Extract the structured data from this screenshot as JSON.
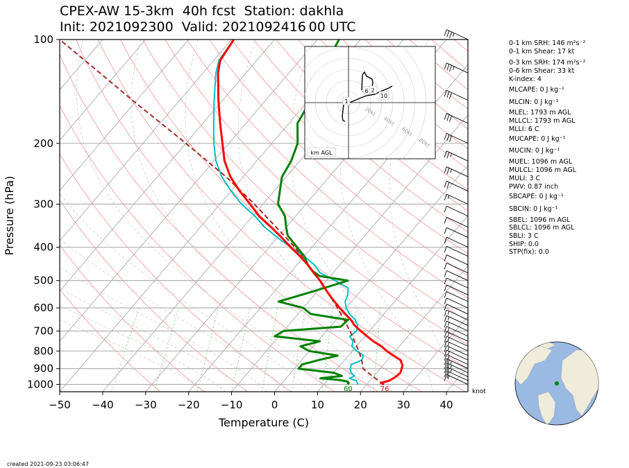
{
  "title_line1": "CPEX-AW 15-3km  40h fcst  Station: dakhla",
  "title_line2": "Init: 2021092300  Valid: 2021092416 00 UTC",
  "created": "created 2021-09-23 03:06:47",
  "wind_unit": "knot",
  "hodograph": {
    "label": "km AGL",
    "ring_labels": [
      "20kt",
      "40kt",
      "60kt",
      "80kt"
    ],
    "markers": [
      "1",
      "6",
      "2",
      "10"
    ]
  },
  "indices": [
    {
      "text": "0-1 km SRH: 146 m²s⁻²"
    },
    {
      "text": "0-1 km Shear: 17 kt"
    },
    {
      "text": "0-3 km SRH: 174 m²s⁻²"
    },
    {
      "text": "0-6 km Shear: 33 kt"
    },
    {
      "text": "K-index: 4"
    },
    {
      "text": "MLCAPE: 0 J kg⁻¹"
    },
    {
      "text": "MLCIN: 0 J kg⁻¹"
    },
    {
      "text": "MLEL: 1793 m AGL"
    },
    {
      "text": "MLLCL: 1793 m AGL"
    },
    {
      "text": "MLLI: 6 C"
    },
    {
      "text": "MUCAPE: 0 J kg⁻¹"
    },
    {
      "text": "MUCIN: 0 J kg⁻¹"
    },
    {
      "text": "MUEL: 1096 m AGL"
    },
    {
      "text": "MULCL: 1096 m AGL"
    },
    {
      "text": "MULI: 3 C"
    },
    {
      "text": "PWV: 0.87 inch"
    },
    {
      "text": "SBCAPE: 0 J kg⁻¹"
    },
    {
      "text": "SBCIN: 0 J kg⁻¹"
    },
    {
      "text": "SBEL: 1096 m AGL"
    },
    {
      "text": "SBLCL: 1096 m AGL"
    },
    {
      "text": "SBLI: 3 C"
    },
    {
      "text": "SHIP: 0.0"
    },
    {
      "text": "STP(fix): 0.0"
    }
  ],
  "chart_data": {
    "type": "line",
    "subtype": "skew-T log-p",
    "xlabel": "Temperature (C)",
    "ylabel": "Pressure (hPa)",
    "xlim": [
      -50,
      45
    ],
    "ylim": [
      1050,
      100
    ],
    "xticks": [
      -50,
      -40,
      -30,
      -20,
      -10,
      0,
      10,
      20,
      30,
      40
    ],
    "yticks": [
      100,
      200,
      300,
      400,
      500,
      600,
      700,
      800,
      900,
      1000
    ],
    "surface_labels": {
      "dewpoint_f": "60",
      "temperature_f": "76"
    },
    "colors": {
      "temperature": "#ff0000",
      "dewpoint": "#008000",
      "wetbulb": "#00bfc4",
      "parcel": "#a52a2a",
      "isotherm": "#aaaaaa",
      "dry_adiabat": "#f4a0a0",
      "mixing_ratio": "#7ccd7c"
    },
    "series": [
      {
        "pressure": [
          1000,
          990,
          975,
          960,
          945,
          925,
          900,
          880,
          850,
          825,
          800,
          775,
          750,
          725,
          700,
          675,
          650,
          625,
          600,
          575,
          550,
          525,
          500,
          475,
          450,
          425,
          400,
          375,
          350,
          325,
          300,
          275,
          250,
          225,
          200,
          175,
          150,
          125,
          115,
          100
        ],
        "values": [
          24.0,
          23.0,
          24.5,
          25.0,
          25.3,
          25.5,
          25.0,
          24.5,
          23.0,
          20.5,
          18.0,
          15.8,
          13.0,
          10.5,
          8.0,
          5.5,
          3.5,
          1.0,
          -1.5,
          -4.0,
          -6.5,
          -9.0,
          -11.5,
          -14.5,
          -17.5,
          -21.0,
          -25.0,
          -29.0,
          -33.5,
          -38.5,
          -43.0,
          -48.0,
          -53.0,
          -57.5,
          -61.5,
          -66.0,
          -71.0,
          -76.5,
          -78.5,
          -79.5
        ]
      },
      {
        "pressure": [
          1000,
          990,
          980,
          970,
          960,
          945,
          925,
          900,
          875,
          850,
          825,
          800,
          775,
          750,
          725,
          700,
          680,
          650,
          625,
          600,
          575,
          550,
          525,
          500,
          485,
          470,
          450,
          425,
          400,
          370,
          350,
          325,
          300,
          250,
          225,
          200,
          175,
          150,
          120,
          100
        ],
        "values": [
          15.5,
          15.5,
          14.8,
          12.5,
          8.0,
          12.5,
          10.0,
          1.0,
          1.0,
          4.0,
          7.5,
          0.0,
          -3.0,
          0.5,
          -11.0,
          -10.0,
          2.5,
          2.8,
          -7.0,
          -10.0,
          -17.0,
          -13.0,
          -9.0,
          -5.0,
          -12.5,
          -15.0,
          -17.5,
          -20.0,
          -23.5,
          -28.0,
          -30.0,
          -32.5,
          -36.5,
          -41.0,
          -42.0,
          -44.0,
          -48.0,
          -49.5,
          -53.0,
          -55.0
        ]
      },
      {
        "pressure": [
          1000,
          990,
          975,
          960,
          945,
          925,
          900,
          875,
          850,
          825,
          800,
          775,
          750,
          725,
          700,
          675,
          650,
          625,
          600,
          575,
          550,
          525,
          500,
          475,
          450,
          425,
          400,
          375,
          350,
          325,
          300,
          275,
          250,
          225,
          200,
          175,
          150,
          125,
          115,
          100
        ],
        "values": [
          18.0,
          17.5,
          16.8,
          14.8,
          15.5,
          14.0,
          13.0,
          12.5,
          14.0,
          13.5,
          11.0,
          9.0,
          8.2,
          6.5,
          7.0,
          6.2,
          4.5,
          2.0,
          0.0,
          -1.5,
          -2.2,
          -3.5,
          -8.0,
          -13.0,
          -16.0,
          -20.0,
          -25.0,
          -30.0,
          -35.0,
          -39.5,
          -45.0,
          -50.0,
          -55.0,
          -59.5,
          -63.5,
          -67.5,
          -72.0,
          -77.0,
          -78.8,
          -79.5
        ]
      },
      {
        "pressure": [
          1000,
          975,
          950,
          925,
          900,
          875,
          850,
          800,
          700,
          600,
          500,
          400,
          300,
          250,
          200,
          150,
          125,
          100
        ],
        "values": [
          24.0,
          22.0,
          20.0,
          18.0,
          16.0,
          15.0,
          14.0,
          11.5,
          5.5,
          -2.0,
          -11.5,
          -24.0,
          -42.0,
          -54.0,
          -70.0,
          -91.0,
          -104.0,
          -120.0
        ]
      }
    ],
    "wind_barbs": {
      "pressure": [
        1000,
        975,
        950,
        925,
        900,
        875,
        850,
        825,
        800,
        775,
        750,
        725,
        700,
        675,
        650,
        625,
        600,
        575,
        550,
        525,
        500,
        475,
        450,
        425,
        400,
        375,
        350,
        325,
        300,
        275,
        250,
        225,
        200,
        175,
        150,
        125,
        100
      ],
      "speed_kt": [
        15,
        20,
        25,
        25,
        25,
        20,
        15,
        15,
        15,
        15,
        15,
        15,
        15,
        15,
        15,
        10,
        10,
        10,
        10,
        10,
        10,
        10,
        10,
        10,
        10,
        10,
        10,
        10,
        15,
        20,
        25,
        25,
        30,
        30,
        30,
        35,
        35
      ]
    }
  }
}
